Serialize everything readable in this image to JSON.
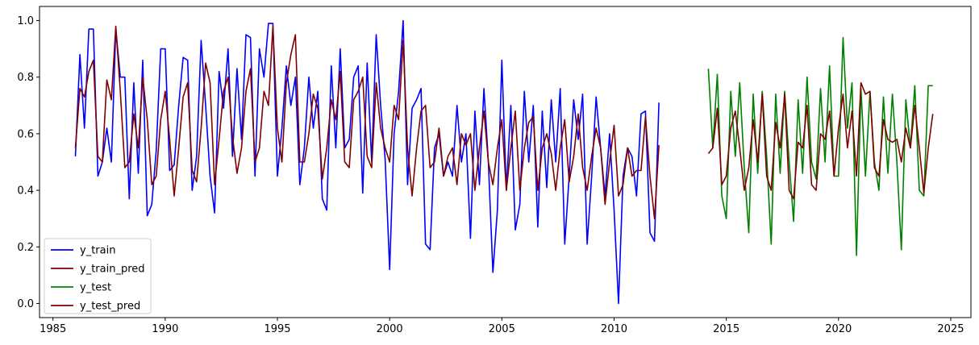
{
  "chart_data": {
    "type": "line",
    "title": "",
    "xlabel": "",
    "ylabel": "",
    "xlim": [
      1984.4,
      2025.9
    ],
    "ylim": [
      -0.05,
      1.05
    ],
    "x_ticks": [
      1985,
      1990,
      1995,
      2000,
      2005,
      2010,
      2015,
      2020,
      2025
    ],
    "y_ticks": [
      0.0,
      0.2,
      0.4,
      0.6,
      0.8,
      1.0
    ],
    "grid": false,
    "legend_position": "lower-left",
    "series": [
      {
        "name": "y_train",
        "color": "#0000ff",
        "x": [
          1986.0,
          1986.2,
          1986.4,
          1986.6,
          1986.8,
          1987.0,
          1987.2,
          1987.4,
          1987.6,
          1987.8,
          1988.0,
          1988.2,
          1988.4,
          1988.6,
          1988.8,
          1989.0,
          1989.2,
          1989.4,
          1989.6,
          1989.8,
          1990.0,
          1990.2,
          1990.4,
          1990.6,
          1990.8,
          1991.0,
          1991.2,
          1991.4,
          1991.6,
          1991.8,
          1992.0,
          1992.2,
          1992.4,
          1992.6,
          1992.8,
          1993.0,
          1993.2,
          1993.4,
          1993.6,
          1993.8,
          1994.0,
          1994.2,
          1994.4,
          1994.6,
          1994.8,
          1995.0,
          1995.2,
          1995.4,
          1995.6,
          1995.8,
          1996.0,
          1996.2,
          1996.4,
          1996.6,
          1996.8,
          1997.0,
          1997.2,
          1997.4,
          1997.6,
          1997.8,
          1998.0,
          1998.2,
          1998.4,
          1998.6,
          1998.8,
          1999.0,
          1999.2,
          1999.4,
          1999.6,
          1999.8,
          2000.0,
          2000.2,
          2000.4,
          2000.6,
          2000.8,
          2001.0,
          2001.2,
          2001.4,
          2001.6,
          2001.8,
          2002.0,
          2002.2,
          2002.4,
          2002.6,
          2002.8,
          2003.0,
          2003.2,
          2003.4,
          2003.6,
          2003.8,
          2004.0,
          2004.2,
          2004.4,
          2004.6,
          2004.8,
          2005.0,
          2005.2,
          2005.4,
          2005.6,
          2005.8,
          2006.0,
          2006.2,
          2006.4,
          2006.6,
          2006.8,
          2007.0,
          2007.2,
          2007.4,
          2007.6,
          2007.8,
          2008.0,
          2008.2,
          2008.4,
          2008.6,
          2008.8,
          2009.0,
          2009.2,
          2009.4,
          2009.6,
          2009.8,
          2010.0,
          2010.2,
          2010.4,
          2010.6,
          2010.8,
          2011.0,
          2011.2,
          2011.4,
          2011.6,
          2011.8,
          2012.0
        ],
        "y": [
          0.52,
          0.88,
          0.62,
          0.97,
          0.97,
          0.45,
          0.5,
          0.62,
          0.5,
          0.97,
          0.8,
          0.8,
          0.37,
          0.78,
          0.46,
          0.86,
          0.31,
          0.35,
          0.54,
          0.9,
          0.9,
          0.47,
          0.49,
          0.7,
          0.87,
          0.86,
          0.4,
          0.52,
          0.93,
          0.7,
          0.45,
          0.32,
          0.82,
          0.69,
          0.9,
          0.52,
          0.83,
          0.58,
          0.95,
          0.94,
          0.45,
          0.9,
          0.8,
          0.99,
          0.99,
          0.45,
          0.62,
          0.84,
          0.7,
          0.8,
          0.42,
          0.55,
          0.8,
          0.62,
          0.75,
          0.37,
          0.33,
          0.84,
          0.55,
          0.9,
          0.55,
          0.58,
          0.8,
          0.84,
          0.39,
          0.85,
          0.5,
          0.95,
          0.7,
          0.51,
          0.12,
          0.6,
          0.75,
          1.0,
          0.42,
          0.69,
          0.72,
          0.76,
          0.21,
          0.19,
          0.55,
          0.6,
          0.45,
          0.5,
          0.45,
          0.7,
          0.5,
          0.6,
          0.23,
          0.68,
          0.42,
          0.76,
          0.5,
          0.11,
          0.33,
          0.86,
          0.4,
          0.7,
          0.26,
          0.35,
          0.75,
          0.5,
          0.7,
          0.27,
          0.68,
          0.41,
          0.72,
          0.5,
          0.76,
          0.21,
          0.45,
          0.72,
          0.58,
          0.74,
          0.21,
          0.45,
          0.73,
          0.55,
          0.38,
          0.6,
          0.33,
          0.0,
          0.45,
          0.55,
          0.52,
          0.38,
          0.67,
          0.68,
          0.25,
          0.22,
          0.71
        ]
      },
      {
        "name": "y_train_pred",
        "color": "#800000",
        "x": [
          1986.0,
          1986.2,
          1986.4,
          1986.6,
          1986.8,
          1987.0,
          1987.2,
          1987.4,
          1987.6,
          1987.8,
          1988.0,
          1988.2,
          1988.4,
          1988.6,
          1988.8,
          1989.0,
          1989.2,
          1989.4,
          1989.6,
          1989.8,
          1990.0,
          1990.2,
          1990.4,
          1990.6,
          1990.8,
          1991.0,
          1991.2,
          1991.4,
          1991.6,
          1991.8,
          1992.0,
          1992.2,
          1992.4,
          1992.6,
          1992.8,
          1993.0,
          1993.2,
          1993.4,
          1993.6,
          1993.8,
          1994.0,
          1994.2,
          1994.4,
          1994.6,
          1994.8,
          1995.0,
          1995.2,
          1995.4,
          1995.6,
          1995.8,
          1996.0,
          1996.2,
          1996.4,
          1996.6,
          1996.8,
          1997.0,
          1997.2,
          1997.4,
          1997.6,
          1997.8,
          1998.0,
          1998.2,
          1998.4,
          1998.6,
          1998.8,
          1999.0,
          1999.2,
          1999.4,
          1999.6,
          1999.8,
          2000.0,
          2000.2,
          2000.4,
          2000.6,
          2000.8,
          2001.0,
          2001.2,
          2001.4,
          2001.6,
          2001.8,
          2002.0,
          2002.2,
          2002.4,
          2002.6,
          2002.8,
          2003.0,
          2003.2,
          2003.4,
          2003.6,
          2003.8,
          2004.0,
          2004.2,
          2004.4,
          2004.6,
          2004.8,
          2005.0,
          2005.2,
          2005.4,
          2005.6,
          2005.8,
          2006.0,
          2006.2,
          2006.4,
          2006.6,
          2006.8,
          2007.0,
          2007.2,
          2007.4,
          2007.6,
          2007.8,
          2008.0,
          2008.2,
          2008.4,
          2008.6,
          2008.8,
          2009.0,
          2009.2,
          2009.4,
          2009.6,
          2009.8,
          2010.0,
          2010.2,
          2010.4,
          2010.6,
          2010.8,
          2011.0,
          2011.2,
          2011.4,
          2011.6,
          2011.8,
          2012.0
        ],
        "y": [
          0.55,
          0.76,
          0.73,
          0.82,
          0.86,
          0.52,
          0.5,
          0.79,
          0.72,
          0.98,
          0.75,
          0.48,
          0.5,
          0.67,
          0.55,
          0.8,
          0.65,
          0.42,
          0.45,
          0.65,
          0.75,
          0.58,
          0.38,
          0.55,
          0.73,
          0.78,
          0.47,
          0.43,
          0.62,
          0.85,
          0.78,
          0.42,
          0.58,
          0.75,
          0.8,
          0.59,
          0.46,
          0.55,
          0.75,
          0.83,
          0.5,
          0.55,
          0.75,
          0.7,
          0.98,
          0.62,
          0.5,
          0.78,
          0.88,
          0.95,
          0.5,
          0.5,
          0.6,
          0.74,
          0.69,
          0.44,
          0.55,
          0.72,
          0.65,
          0.82,
          0.5,
          0.48,
          0.72,
          0.75,
          0.8,
          0.52,
          0.48,
          0.78,
          0.62,
          0.55,
          0.5,
          0.7,
          0.65,
          0.93,
          0.55,
          0.38,
          0.55,
          0.68,
          0.7,
          0.48,
          0.5,
          0.62,
          0.45,
          0.52,
          0.55,
          0.42,
          0.6,
          0.56,
          0.6,
          0.4,
          0.55,
          0.68,
          0.5,
          0.42,
          0.55,
          0.65,
          0.4,
          0.55,
          0.68,
          0.4,
          0.55,
          0.64,
          0.66,
          0.4,
          0.55,
          0.6,
          0.53,
          0.4,
          0.55,
          0.65,
          0.43,
          0.52,
          0.67,
          0.48,
          0.4,
          0.52,
          0.62,
          0.55,
          0.35,
          0.5,
          0.63,
          0.38,
          0.42,
          0.55,
          0.45,
          0.47,
          0.47,
          0.66,
          0.45,
          0.3,
          0.56
        ]
      },
      {
        "name": "y_test",
        "color": "#008000",
        "x": [
          2014.2,
          2014.4,
          2014.6,
          2014.8,
          2015.0,
          2015.2,
          2015.4,
          2015.6,
          2015.8,
          2016.0,
          2016.2,
          2016.4,
          2016.6,
          2016.8,
          2017.0,
          2017.2,
          2017.4,
          2017.6,
          2017.8,
          2018.0,
          2018.2,
          2018.4,
          2018.6,
          2018.8,
          2019.0,
          2019.2,
          2019.4,
          2019.6,
          2019.8,
          2020.0,
          2020.2,
          2020.4,
          2020.6,
          2020.8,
          2021.0,
          2021.2,
          2021.4,
          2021.6,
          2021.8,
          2022.0,
          2022.2,
          2022.4,
          2022.6,
          2022.8,
          2023.0,
          2023.2,
          2023.4,
          2023.6,
          2023.8,
          2024.0,
          2024.2
        ],
        "y": [
          0.83,
          0.55,
          0.81,
          0.38,
          0.3,
          0.75,
          0.52,
          0.78,
          0.48,
          0.25,
          0.74,
          0.46,
          0.75,
          0.52,
          0.21,
          0.74,
          0.46,
          0.75,
          0.5,
          0.29,
          0.72,
          0.46,
          0.8,
          0.5,
          0.44,
          0.76,
          0.5,
          0.84,
          0.45,
          0.45,
          0.94,
          0.62,
          0.78,
          0.17,
          0.76,
          0.45,
          0.75,
          0.5,
          0.4,
          0.73,
          0.46,
          0.74,
          0.5,
          0.19,
          0.72,
          0.55,
          0.77,
          0.4,
          0.38,
          0.77,
          0.77
        ]
      },
      {
        "name": "y_test_pred",
        "color": "#800000",
        "x": [
          2014.2,
          2014.4,
          2014.6,
          2014.8,
          2015.0,
          2015.2,
          2015.4,
          2015.6,
          2015.8,
          2016.0,
          2016.2,
          2016.4,
          2016.6,
          2016.8,
          2017.0,
          2017.2,
          2017.4,
          2017.6,
          2017.8,
          2018.0,
          2018.2,
          2018.4,
          2018.6,
          2018.8,
          2019.0,
          2019.2,
          2019.4,
          2019.6,
          2019.8,
          2020.0,
          2020.2,
          2020.4,
          2020.6,
          2020.8,
          2021.0,
          2021.2,
          2021.4,
          2021.6,
          2021.8,
          2022.0,
          2022.2,
          2022.4,
          2022.6,
          2022.8,
          2023.0,
          2023.2,
          2023.4,
          2023.6,
          2023.8,
          2024.0,
          2024.2
        ],
        "y": [
          0.53,
          0.55,
          0.69,
          0.42,
          0.45,
          0.62,
          0.68,
          0.55,
          0.4,
          0.48,
          0.65,
          0.5,
          0.74,
          0.45,
          0.4,
          0.64,
          0.55,
          0.74,
          0.4,
          0.37,
          0.57,
          0.55,
          0.7,
          0.42,
          0.4,
          0.6,
          0.58,
          0.68,
          0.45,
          0.62,
          0.74,
          0.55,
          0.68,
          0.45,
          0.78,
          0.74,
          0.75,
          0.48,
          0.45,
          0.65,
          0.58,
          0.57,
          0.58,
          0.5,
          0.62,
          0.55,
          0.7,
          0.55,
          0.39,
          0.55,
          0.67
        ]
      }
    ]
  }
}
